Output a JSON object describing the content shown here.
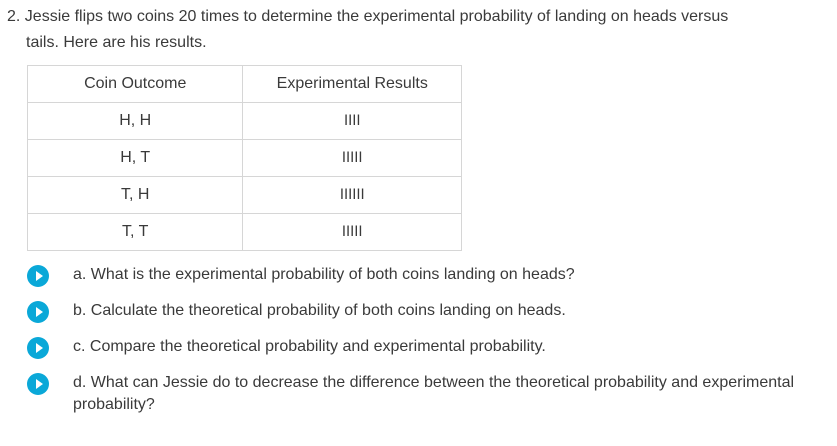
{
  "question": {
    "line1": "2. Jessie flips two coins 20 times to determine the experimental probability of landing on heads versus",
    "line2": "tails. Here are his results."
  },
  "table": {
    "headers": [
      "Coin Outcome",
      "Experimental Results"
    ],
    "rows": [
      {
        "outcome": "H, H",
        "result": "IIII"
      },
      {
        "outcome": "H, T",
        "result": "IIIII"
      },
      {
        "outcome": "T, H",
        "result": "IIIIII"
      },
      {
        "outcome": "T, T",
        "result": "IIIII"
      }
    ]
  },
  "parts": [
    {
      "text": "a. What is the experimental probability of both coins landing on heads?",
      "icon": "play-icon"
    },
    {
      "text": "b. Calculate the theoretical probability of both coins landing on heads.",
      "icon": "play-icon"
    },
    {
      "text": "c. Compare the theoretical probability and experimental probability.",
      "icon": "play-icon"
    },
    {
      "text": "d. What can Jessie do to decrease the difference between the theoretical probability and experimental probability?",
      "icon": "play-icon"
    }
  ],
  "colors": {
    "accent": "#0aa8d8",
    "text": "#3a3a3a",
    "border": "#d6d6d6"
  }
}
